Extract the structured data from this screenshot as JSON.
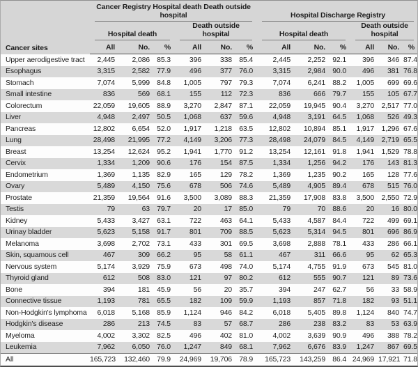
{
  "table": {
    "site_header": "Cancer sites",
    "groups": [
      {
        "title": "Cancer Registry Hospital death Death outside hospital"
      },
      {
        "title": "Hospital Discharge Registry"
      }
    ],
    "subgroups": [
      "Hospital death",
      "Death outside hospital",
      "Hospital death",
      "Death outside hospital"
    ],
    "col_headers": [
      "All",
      "No.",
      "%"
    ],
    "rows": [
      {
        "site": "Upper aerodigestive tract",
        "values": [
          "2,445",
          "2,086",
          "85.3",
          "396",
          "338",
          "85.4",
          "2,445",
          "2,252",
          "92.1",
          "396",
          "346",
          "87.4"
        ]
      },
      {
        "site": "Esophagus",
        "values": [
          "3,315",
          "2,582",
          "77.9",
          "496",
          "377",
          "76.0",
          "3,315",
          "2,984",
          "90.0",
          "496",
          "381",
          "76.8"
        ]
      },
      {
        "site": "Stomach",
        "values": [
          "7,074",
          "5,999",
          "84.8",
          "1,005",
          "797",
          "79.3",
          "7,074",
          "6,241",
          "88.2",
          "1,005",
          "699",
          "69.6"
        ]
      },
      {
        "site": "Small intestine",
        "values": [
          "836",
          "569",
          "68.1",
          "155",
          "112",
          "72.3",
          "836",
          "666",
          "79.7",
          "155",
          "105",
          "67.7"
        ]
      },
      {
        "site": "Colorectum",
        "values": [
          "22,059",
          "19,605",
          "88.9",
          "3,270",
          "2,847",
          "87.1",
          "22,059",
          "19,945",
          "90.4",
          "3,270",
          "2,517",
          "77.0"
        ]
      },
      {
        "site": "Liver",
        "values": [
          "4,948",
          "2,497",
          "50.5",
          "1,068",
          "637",
          "59.6",
          "4,948",
          "3,191",
          "64.5",
          "1,068",
          "526",
          "49.3"
        ]
      },
      {
        "site": "Pancreas",
        "values": [
          "12,802",
          "6,654",
          "52.0",
          "1,917",
          "1,218",
          "63.5",
          "12,802",
          "10,894",
          "85.1",
          "1,917",
          "1,296",
          "67.6"
        ]
      },
      {
        "site": "Lung",
        "values": [
          "28,498",
          "21,995",
          "77.2",
          "4,149",
          "3,206",
          "77.3",
          "28,498",
          "24,079",
          "84.5",
          "4,149",
          "2,719",
          "65.5"
        ]
      },
      {
        "site": "Breast",
        "values": [
          "13,254",
          "12,624",
          "95.2",
          "1,941",
          "1,770",
          "91.2",
          "13,254",
          "12,161",
          "91.8",
          "1,941",
          "1,529",
          "78.8"
        ]
      },
      {
        "site": "Cervix",
        "values": [
          "1,334",
          "1,209",
          "90.6",
          "176",
          "154",
          "87.5",
          "1,334",
          "1,256",
          "94.2",
          "176",
          "143",
          "81.3"
        ]
      },
      {
        "site": "Endometrium",
        "values": [
          "1,369",
          "1,135",
          "82.9",
          "165",
          "129",
          "78.2",
          "1,369",
          "1,235",
          "90.2",
          "165",
          "128",
          "77.6"
        ]
      },
      {
        "site": "Ovary",
        "values": [
          "5,489",
          "4,150",
          "75.6",
          "678",
          "506",
          "74.6",
          "5,489",
          "4,905",
          "89.4",
          "678",
          "515",
          "76.0"
        ]
      },
      {
        "site": "Prostate",
        "values": [
          "21,359",
          "19,564",
          "91.6",
          "3,500",
          "3,089",
          "88.3",
          "21,359",
          "17,908",
          "83.8",
          "3,500",
          "2,550",
          "72.9"
        ]
      },
      {
        "site": "Testis",
        "values": [
          "79",
          "63",
          "79.7",
          "20",
          "17",
          "85.0",
          "79",
          "70",
          "88.6",
          "20",
          "16",
          "80.0"
        ]
      },
      {
        "site": "Kidney",
        "values": [
          "5,433",
          "3,427",
          "63.1",
          "722",
          "463",
          "64.1",
          "5,433",
          "4,587",
          "84.4",
          "722",
          "499",
          "69.1"
        ]
      },
      {
        "site": "Urinay bladder",
        "values": [
          "5,623",
          "5,158",
          "91.7",
          "801",
          "709",
          "88.5",
          "5,623",
          "5,314",
          "94.5",
          "801",
          "696",
          "86.9"
        ]
      },
      {
        "site": "Melanoma",
        "values": [
          "3,698",
          "2,702",
          "73.1",
          "433",
          "301",
          "69.5",
          "3,698",
          "2,888",
          "78.1",
          "433",
          "286",
          "66.1"
        ]
      },
      {
        "site": "Skin, squamous cell",
        "values": [
          "467",
          "309",
          "66.2",
          "95",
          "58",
          "61.1",
          "467",
          "311",
          "66.6",
          "95",
          "62",
          "65.3"
        ]
      },
      {
        "site": "Nervous system",
        "values": [
          "5,174",
          "3,929",
          "75.9",
          "673",
          "498",
          "74.0",
          "5,174",
          "4,755",
          "91.9",
          "673",
          "545",
          "81.0"
        ]
      },
      {
        "site": "Thyroid gland",
        "values": [
          "612",
          "508",
          "83.0",
          "121",
          "97",
          "80.2",
          "612",
          "555",
          "90.7",
          "121",
          "89",
          "73.6"
        ]
      },
      {
        "site": "Bone",
        "values": [
          "394",
          "181",
          "45.9",
          "56",
          "20",
          "35.7",
          "394",
          "247",
          "62.7",
          "56",
          "33",
          "58.9"
        ]
      },
      {
        "site": "Connective tissue",
        "values": [
          "1,193",
          "781",
          "65.5",
          "182",
          "109",
          "59.9",
          "1,193",
          "857",
          "71.8",
          "182",
          "93",
          "51.1"
        ]
      },
      {
        "site": "Non-Hodgkin's lymphoma",
        "values": [
          "6,018",
          "5,168",
          "85.9",
          "1,124",
          "946",
          "84.2",
          "6,018",
          "5,405",
          "89.8",
          "1,124",
          "840",
          "74.7"
        ]
      },
      {
        "site": "Hodgkin's disease",
        "values": [
          "286",
          "213",
          "74.5",
          "83",
          "57",
          "68.7",
          "286",
          "238",
          "83.2",
          "83",
          "53",
          "63.9"
        ]
      },
      {
        "site": "Myeloma",
        "values": [
          "4,002",
          "3,302",
          "82.5",
          "496",
          "402",
          "81.0",
          "4,002",
          "3,639",
          "90.9",
          "496",
          "388",
          "78.2"
        ]
      },
      {
        "site": "Leukemia",
        "values": [
          "7,962",
          "6,050",
          "76.0",
          "1,247",
          "849",
          "68.1",
          "7,962",
          "6,676",
          "83.9",
          "1,247",
          "867",
          "69.5"
        ]
      },
      {
        "site": "All",
        "values": [
          "165,723",
          "132,460",
          "79.9",
          "24,969",
          "19,706",
          "78.9",
          "165,723",
          "143,259",
          "86.4",
          "24,969",
          "17,921",
          "71.8"
        ]
      }
    ]
  },
  "colors": {
    "header_bg": "#d6d6d6",
    "row_alt_bg": "#d9d9d9",
    "row_bg": "#fdfdfd",
    "text": "#1e1e1e",
    "rule": "#7a7a7a",
    "strong_line": "#4d4d4d",
    "top_line": "#8f8f8f",
    "outer_border": "#ababab"
  }
}
